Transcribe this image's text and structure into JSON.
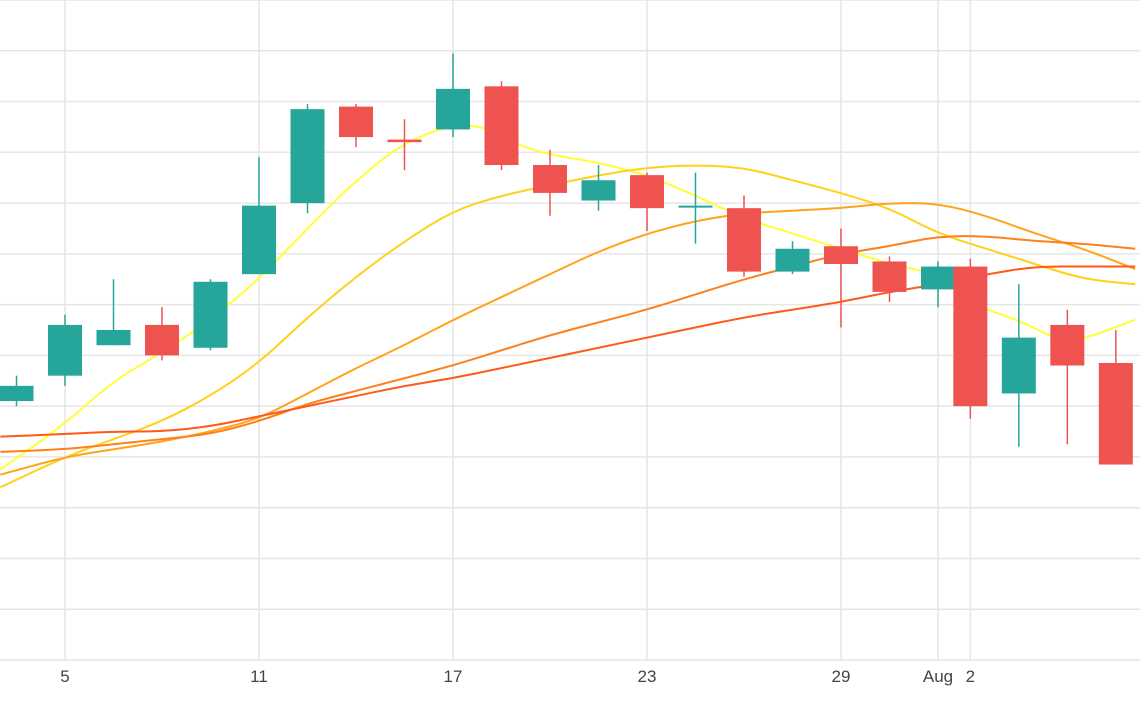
{
  "chart_data": {
    "type": "candlestick",
    "grid": true,
    "legend": "none",
    "x_tick_labels": [
      {
        "day": 5,
        "label": "5"
      },
      {
        "day": 11,
        "label": "11"
      },
      {
        "day": 17,
        "label": "17"
      },
      {
        "day": 23,
        "label": "23"
      },
      {
        "day": 29,
        "label": "29"
      },
      {
        "day": 32,
        "label": "Aug"
      },
      {
        "day": 33,
        "label": "2"
      }
    ],
    "xlim": [
      3,
      38.1
    ],
    "ylim": [
      0,
      13
    ],
    "candles": [
      {
        "day": 3.5,
        "open": 5.1,
        "high": 5.6,
        "low": 5.0,
        "close": 5.4
      },
      {
        "day": 5,
        "open": 5.6,
        "high": 6.8,
        "low": 5.4,
        "close": 6.6
      },
      {
        "day": 6.5,
        "open": 6.2,
        "high": 7.5,
        "low": 6.2,
        "close": 6.5
      },
      {
        "day": 8,
        "open": 6.6,
        "high": 6.95,
        "low": 5.9,
        "close": 6.0
      },
      {
        "day": 9.5,
        "open": 6.15,
        "high": 7.5,
        "low": 6.1,
        "close": 7.45
      },
      {
        "day": 11,
        "open": 7.6,
        "high": 9.9,
        "low": 7.6,
        "close": 8.95
      },
      {
        "day": 12.5,
        "open": 9.0,
        "high": 10.95,
        "low": 8.8,
        "close": 10.85
      },
      {
        "day": 14,
        "open": 10.9,
        "high": 10.95,
        "low": 10.1,
        "close": 10.3
      },
      {
        "day": 15.5,
        "open": 10.25,
        "high": 10.65,
        "low": 9.65,
        "close": 10.2
      },
      {
        "day": 17,
        "open": 10.45,
        "high": 11.95,
        "low": 10.3,
        "close": 11.25
      },
      {
        "day": 18.5,
        "open": 11.3,
        "high": 11.4,
        "low": 9.65,
        "close": 9.75
      },
      {
        "day": 20,
        "open": 9.75,
        "high": 10.05,
        "low": 8.75,
        "close": 9.2
      },
      {
        "day": 21.5,
        "open": 9.05,
        "high": 9.75,
        "low": 8.85,
        "close": 9.45
      },
      {
        "day": 23,
        "open": 9.55,
        "high": 9.6,
        "low": 8.45,
        "close": 8.9
      },
      {
        "day": 24.5,
        "open": 8.95,
        "high": 9.6,
        "low": 8.2,
        "close": 8.95
      },
      {
        "day": 26,
        "open": 8.9,
        "high": 9.15,
        "low": 7.55,
        "close": 7.65
      },
      {
        "day": 27.5,
        "open": 7.65,
        "high": 8.25,
        "low": 7.6,
        "close": 8.1
      },
      {
        "day": 29,
        "open": 8.15,
        "high": 8.5,
        "low": 6.55,
        "close": 7.8
      },
      {
        "day": 30.5,
        "open": 7.85,
        "high": 7.95,
        "low": 7.05,
        "close": 7.25
      },
      {
        "day": 32,
        "open": 7.3,
        "high": 7.85,
        "low": 6.95,
        "close": 7.75
      },
      {
        "day": 33,
        "open": 7.75,
        "high": 7.9,
        "low": 4.75,
        "close": 5.0
      },
      {
        "day": 34.5,
        "open": 5.25,
        "high": 7.4,
        "low": 4.2,
        "close": 6.35
      },
      {
        "day": 36,
        "open": 6.6,
        "high": 6.9,
        "low": 4.25,
        "close": 5.8
      },
      {
        "day": 37.5,
        "open": 5.85,
        "high": 6.5,
        "low": 3.85,
        "close": 3.85
      }
    ],
    "series": [
      {
        "color": "#ffff33",
        "x": [
          3,
          5,
          6.5,
          8,
          9.5,
          11,
          12.5,
          14,
          15.5,
          17,
          18,
          19,
          20,
          21.5,
          23,
          24.5,
          26,
          27.5,
          29,
          30.5,
          32,
          33,
          34.5,
          36,
          38.1
        ],
        "y": [
          3.75,
          4.65,
          5.5,
          6.05,
          6.7,
          7.5,
          8.5,
          9.45,
          10.2,
          10.55,
          10.5,
          10.15,
          9.95,
          9.8,
          9.55,
          9.15,
          8.7,
          8.4,
          8.1,
          7.8,
          7.6,
          7.0,
          6.7,
          6.2,
          6.7
        ]
      },
      {
        "color": "#ffd11a",
        "x": [
          3,
          5,
          6.5,
          8,
          9.5,
          11,
          12.5,
          14,
          15.5,
          17,
          18.5,
          20,
          21.5,
          23,
          24.5,
          26,
          27.5,
          29,
          30.5,
          32,
          33.5,
          35,
          36.5,
          38.1
        ],
        "y": [
          3.4,
          4.0,
          4.35,
          4.7,
          5.2,
          5.85,
          6.75,
          7.55,
          8.25,
          8.85,
          9.15,
          9.35,
          9.55,
          9.7,
          9.75,
          9.7,
          9.45,
          9.2,
          8.9,
          8.4,
          8.1,
          7.8,
          7.5,
          7.4
        ]
      },
      {
        "color": "#ffa41a",
        "x": [
          3,
          5,
          6.5,
          8,
          9.5,
          11,
          12.5,
          14,
          15.5,
          17,
          18.5,
          20,
          21.5,
          23,
          24.5,
          26,
          27.5,
          29,
          30.5,
          32,
          33.5,
          35,
          36.5,
          38.1
        ],
        "y": [
          3.65,
          4.0,
          4.15,
          4.3,
          4.5,
          4.75,
          5.25,
          5.75,
          6.2,
          6.7,
          7.15,
          7.6,
          8.05,
          8.4,
          8.65,
          8.8,
          8.85,
          8.9,
          9.0,
          9.0,
          8.75,
          8.4,
          8.1,
          7.7
        ]
      },
      {
        "color": "#ff7f1a",
        "x": [
          3,
          5,
          6.5,
          8,
          9.5,
          11,
          12.5,
          14,
          15.5,
          17,
          18.5,
          20,
          21.5,
          23,
          24.5,
          26,
          27.5,
          29,
          30.5,
          32,
          33.5,
          35,
          36.5,
          38.1
        ],
        "y": [
          4.1,
          4.15,
          4.25,
          4.35,
          4.45,
          4.7,
          5.05,
          5.3,
          5.55,
          5.8,
          6.1,
          6.4,
          6.65,
          6.9,
          7.2,
          7.5,
          7.75,
          8.0,
          8.15,
          8.35,
          8.35,
          8.25,
          8.2,
          8.1
        ]
      },
      {
        "color": "#ff5a1a",
        "x": [
          3,
          5,
          6.5,
          8,
          9.5,
          11,
          12.5,
          14,
          15.5,
          17,
          18.5,
          20,
          21.5,
          23,
          24.5,
          26,
          27.5,
          29,
          30.5,
          32,
          33.5,
          35,
          36.5,
          38.1
        ],
        "y": [
          4.4,
          4.45,
          4.5,
          4.5,
          4.6,
          4.8,
          5.0,
          5.2,
          5.4,
          5.55,
          5.75,
          5.95,
          6.15,
          6.35,
          6.55,
          6.75,
          6.9,
          7.05,
          7.25,
          7.4,
          7.6,
          7.75,
          7.75,
          7.75
        ]
      }
    ],
    "colors": {
      "up": "#26a69a",
      "down": "#ef5350",
      "grid": "#e6e6e6"
    }
  }
}
